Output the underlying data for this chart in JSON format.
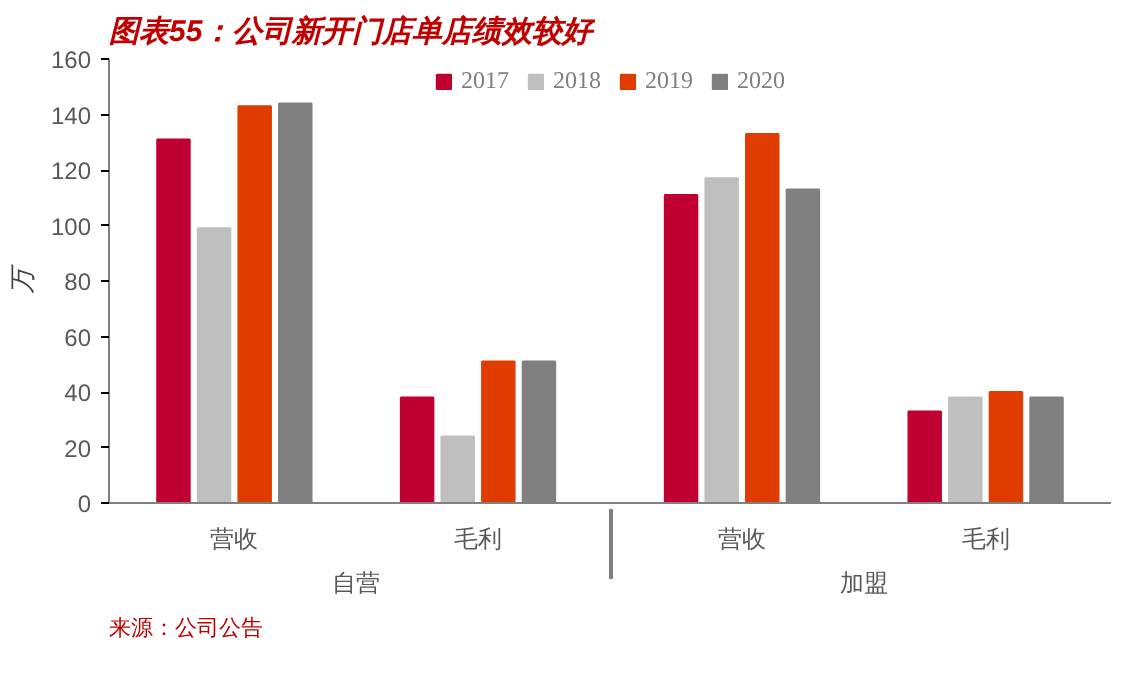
{
  "chart_data": {
    "type": "bar",
    "title": "图表55：公司新开门店单店绩效较好",
    "categories": [
      "营收",
      "毛利",
      "营收",
      "毛利"
    ],
    "series": [
      {
        "name": "2017",
        "color": "#c00030",
        "values": [
          131,
          38,
          111,
          33
        ]
      },
      {
        "name": "2018",
        "color": "#bfbfbf",
        "values": [
          99,
          24,
          117,
          38
        ]
      },
      {
        "name": "2019",
        "color": "#e03c00",
        "values": [
          143,
          51,
          133,
          40
        ]
      },
      {
        "name": "2020",
        "color": "#808080",
        "values": [
          144,
          51,
          113,
          38
        ]
      }
    ],
    "ylabel": "万",
    "ylim": [
      0,
      160
    ],
    "yticks": [
      0,
      20,
      40,
      60,
      80,
      100,
      120,
      140,
      160
    ],
    "legend": "top",
    "grid": false,
    "annotations": [
      "自营",
      "加盟",
      "来源：公司公告"
    ]
  }
}
